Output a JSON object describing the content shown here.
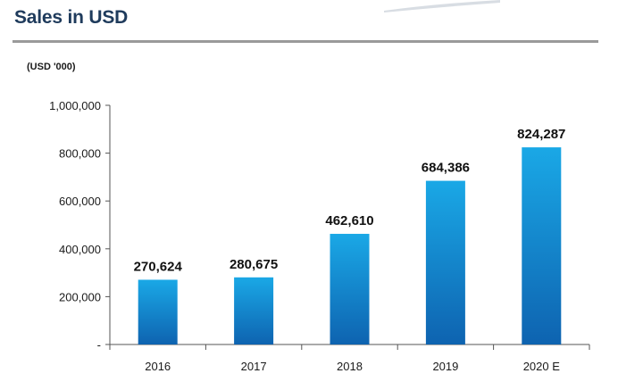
{
  "page": {
    "title": "Sales in USD",
    "unit": "(USD '000)"
  },
  "colors": {
    "bar_top": "#1aa8e6",
    "bar_bottom": "#0e63b0",
    "title": "#1f3b5c",
    "axis": "#555555"
  },
  "chart_data": {
    "type": "bar",
    "title": "Sales in USD",
    "ylabel": "(USD '000)",
    "xlabel": "",
    "categories": [
      "2016",
      "2017",
      "2018",
      "2019",
      "2020 E"
    ],
    "values": [
      270624,
      280675,
      462610,
      684386,
      824287
    ],
    "data_labels": [
      "270,624",
      "280,675",
      "462,610",
      "684,386",
      "824,287"
    ],
    "ylim": [
      0,
      1000000
    ],
    "yticks": [
      0,
      200000,
      400000,
      600000,
      800000,
      1000000
    ],
    "ytick_labels": [
      "-",
      "200,000",
      "400,000",
      "600,000",
      "800,000",
      "1,000,000"
    ],
    "grid": false,
    "legend": "none"
  }
}
